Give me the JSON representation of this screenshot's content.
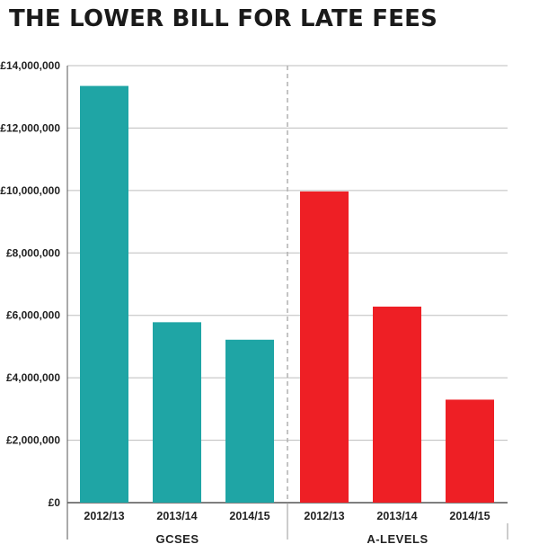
{
  "chart_data": {
    "type": "bar",
    "title": "THE LOWER BILL FOR LATE FEES",
    "xlabel": "",
    "ylabel": "",
    "ylim": [
      0,
      14000000
    ],
    "yticks": [
      "£0",
      "£2,000,000",
      "£4,000,000",
      "£6,000,000",
      "£8,000,000",
      "£10,000,000",
      "£12,000,000",
      "£14,000,000"
    ],
    "ytick_values": [
      0,
      2000000,
      4000000,
      6000000,
      8000000,
      10000000,
      12000000,
      14000000
    ],
    "grid": true,
    "groups": [
      {
        "name": "GCSES",
        "color": "#1fa5a5",
        "categories": [
          "2012/13",
          "2013/14",
          "2014/15"
        ],
        "values": [
          13350000,
          5780000,
          5220000
        ]
      },
      {
        "name": "A-LEVELS",
        "color": "#ee1f25",
        "categories": [
          "2012/13",
          "2013/14",
          "2014/15"
        ],
        "values": [
          9970000,
          6280000,
          3300000
        ]
      }
    ]
  }
}
